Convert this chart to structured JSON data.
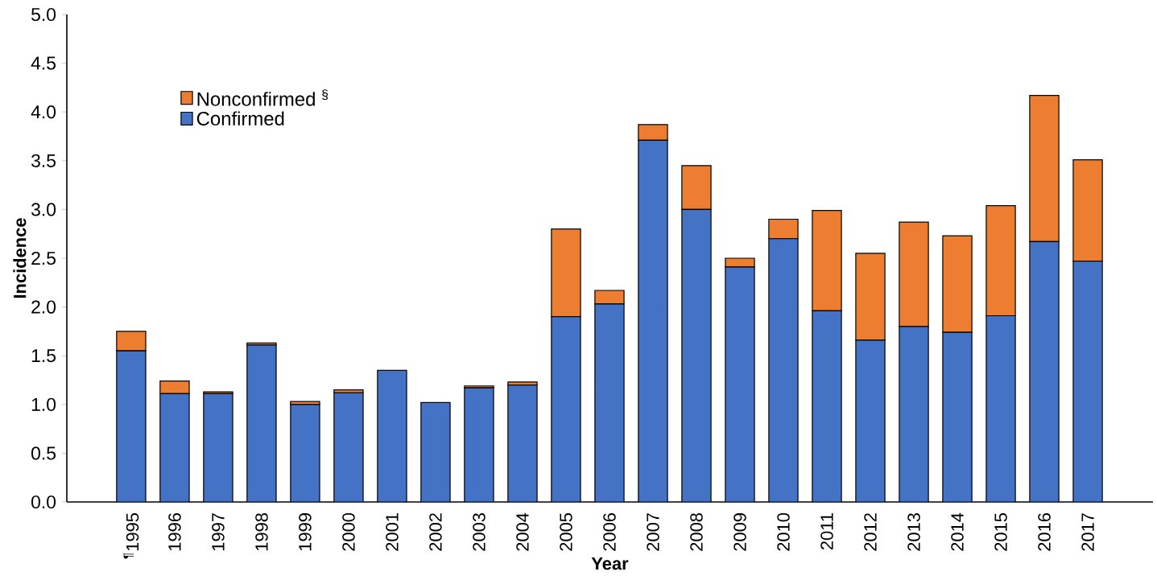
{
  "chart_data": {
    "type": "bar",
    "stacked": true,
    "xlabel": "Year",
    "ylabel": "Incidence",
    "categories": [
      "$^{¶}$1995",
      "1996",
      "1997",
      "1998",
      "1999",
      "2000",
      "2001",
      "2002",
      "2003",
      "2004",
      "2005",
      "2006",
      "2007",
      "2008",
      "2009",
      "2010",
      "2011",
      "2012",
      "2013",
      "2014",
      "2015",
      "2016",
      "2017"
    ],
    "series": [
      {
        "name": "Confirmed",
        "color": "#4472c4",
        "values": [
          1.55,
          1.11,
          1.11,
          1.61,
          1.0,
          1.12,
          1.35,
          1.02,
          1.17,
          1.2,
          1.9,
          2.03,
          3.71,
          3.0,
          2.41,
          2.7,
          1.96,
          1.66,
          1.8,
          1.74,
          1.91,
          2.67,
          2.47
        ]
      },
      {
        "name": "Nonconfirmed $^{§}$",
        "color": "#ed7d31",
        "values": [
          0.2,
          0.13,
          0.02,
          0.02,
          0.03,
          0.03,
          null,
          null,
          0.02,
          0.03,
          0.9,
          0.14,
          0.16,
          0.45,
          0.09,
          0.2,
          1.03,
          0.89,
          1.07,
          0.99,
          1.13,
          1.5,
          1.04
        ]
      }
    ],
    "ylim": [
      0,
      5
    ],
    "yticks": [
      {
        "value": 0,
        "label": "0.0"
      },
      {
        "value": 0.5,
        "label": "0.5"
      },
      {
        "value": 1,
        "label": "1.0"
      },
      {
        "value": 1.5,
        "label": "1.5"
      },
      {
        "value": 2,
        "label": "2.0"
      },
      {
        "value": 2.5,
        "label": "2.5"
      },
      {
        "value": 3,
        "label": "3.0"
      },
      {
        "value": 3.5,
        "label": "3.5"
      },
      {
        "value": 4,
        "label": "4.0"
      },
      {
        "value": 4.5,
        "label": "4.5"
      },
      {
        "value": 5,
        "label": "5.0"
      }
    ],
    "legend": "top left",
    "grid": false
  }
}
